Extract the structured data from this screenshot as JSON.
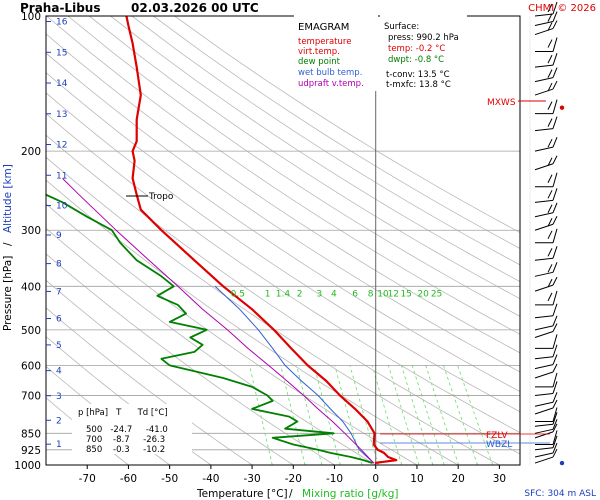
{
  "header": {
    "station": "Praha-Libus",
    "datetime": "02.03.2026 00 UTC",
    "copyright": "CHMI © 2026"
  },
  "legend": {
    "title": "EMAGRAM",
    "items": [
      {
        "label": "temperature",
        "color": "#e00000"
      },
      {
        "label": "virt.temp.",
        "color": "#e00000"
      },
      {
        "label": "dew point",
        "color": "#008000"
      },
      {
        "label": "wet bulb temp.",
        "color": "#3060d0"
      },
      {
        "label": "udpraft v.temp.",
        "color": "#b000b0"
      }
    ]
  },
  "surface_box": {
    "title": "Surface:",
    "lines": [
      {
        "text": "press: 990.2 hPa",
        "color": "#000000"
      },
      {
        "text": "temp: -0.2 °C",
        "color": "#e00000"
      },
      {
        "text": "dwpt: -0.8 °C",
        "color": "#008000"
      },
      {
        "text": "t-conv: 13.5 °C",
        "color": "#000000"
      },
      {
        "text": "t-mxfc: 13.8 °C",
        "color": "#000000"
      }
    ]
  },
  "levels_table": {
    "header": "p [hPa]   T      Td [°C]",
    "rows": [
      "500   -24.7     -41.0",
      "700    -8.7     -26.3",
      "850    -0.3     -10.2"
    ]
  },
  "axes": {
    "xlabel_temp": "Temperature [°C]",
    "xlabel_sep": "/",
    "xlabel_mix": "Mixing ratio [g/kg]",
    "ylabel_pressure": "Pressure [hPa]",
    "ylabel_sep": "/",
    "ylabel_alt": "Altitude [km]",
    "sfc_label": "SFC: 304 m ASL"
  },
  "annotations": {
    "tropo": "Tropo",
    "mxws": "MXWS",
    "fzlv": "FZLV",
    "wbzl": "WBZL"
  },
  "colors": {
    "temperature": "#e00000",
    "dewpoint": "#008000",
    "wetbulb": "#3060d0",
    "parcel": "#b000b0",
    "mixing": "#66dd66",
    "grid": "#b8b8b8",
    "altitude": "#1a3fbf"
  },
  "chart_data": {
    "type": "line",
    "title": "Praha-Libus   02.03.2026 00 UTC",
    "xlabel": "Temperature [°C]  /  Mixing ratio [g/kg]",
    "ylabel": "Pressure [hPa]  /  Altitude [km]",
    "x_range": [
      -80,
      35
    ],
    "y_range_hpa": [
      1000,
      100
    ],
    "y_scale": "log",
    "x_ticks": [
      -70,
      -60,
      -50,
      -40,
      -30,
      -20,
      -10,
      0,
      10,
      20,
      30
    ],
    "y_ticks": [
      100,
      200,
      300,
      400,
      500,
      600,
      700,
      850,
      925,
      1000
    ],
    "mixing_ratio_labels": [
      "0.5",
      "1",
      "1.4",
      "2",
      "3",
      "4",
      "6",
      "8",
      "10",
      "12",
      "15",
      "20",
      "25"
    ],
    "mixing_ratio_values": [
      0.5,
      1,
      1.4,
      2,
      3,
      4,
      6,
      8,
      10,
      12,
      15,
      20,
      25
    ],
    "altitude_km_ticks": [
      1,
      2,
      3,
      4,
      5,
      6,
      7,
      8,
      9,
      10,
      11,
      12,
      13,
      14,
      15,
      16
    ],
    "series": [
      {
        "name": "temperature",
        "points": [
          [
            990,
            -0.2
          ],
          [
            975,
            5
          ],
          [
            960,
            3
          ],
          [
            940,
            2
          ],
          [
            925,
            0.5
          ],
          [
            900,
            -0.5
          ],
          [
            850,
            -0.3
          ],
          [
            800,
            -2
          ],
          [
            750,
            -5
          ],
          [
            700,
            -8.7
          ],
          [
            650,
            -12
          ],
          [
            600,
            -16.5
          ],
          [
            550,
            -20.5
          ],
          [
            500,
            -24.7
          ],
          [
            450,
            -30
          ],
          [
            400,
            -37
          ],
          [
            350,
            -44
          ],
          [
            300,
            -52
          ],
          [
            270,
            -57
          ],
          [
            250,
            -58
          ],
          [
            230,
            -59
          ],
          [
            210,
            -58.5
          ],
          [
            200,
            -59
          ],
          [
            190,
            -58
          ],
          [
            170,
            -58
          ],
          [
            150,
            -57
          ],
          [
            130,
            -58
          ],
          [
            115,
            -59
          ],
          [
            105,
            -60
          ],
          [
            100,
            -60.5
          ]
        ]
      },
      {
        "name": "dew point",
        "points": [
          [
            990,
            -0.8
          ],
          [
            975,
            -3
          ],
          [
            960,
            -6
          ],
          [
            940,
            -11
          ],
          [
            925,
            -14
          ],
          [
            900,
            -20
          ],
          [
            870,
            -25
          ],
          [
            850,
            -10.2
          ],
          [
            830,
            -22
          ],
          [
            800,
            -19
          ],
          [
            780,
            -21
          ],
          [
            750,
            -30
          ],
          [
            720,
            -25
          ],
          [
            700,
            -26.3
          ],
          [
            670,
            -30
          ],
          [
            640,
            -37
          ],
          [
            600,
            -50
          ],
          [
            580,
            -52
          ],
          [
            560,
            -44
          ],
          [
            540,
            -42
          ],
          [
            520,
            -45
          ],
          [
            500,
            -41.0
          ],
          [
            480,
            -50
          ],
          [
            460,
            -46
          ],
          [
            440,
            -48
          ],
          [
            420,
            -53
          ],
          [
            400,
            -49
          ],
          [
            380,
            -52
          ],
          [
            350,
            -58
          ],
          [
            320,
            -62
          ],
          [
            300,
            -64
          ],
          [
            280,
            -70
          ],
          [
            260,
            -76
          ],
          [
            250,
            -80
          ]
        ]
      },
      {
        "name": "wet bulb temp.",
        "points": [
          [
            990,
            -0.5
          ],
          [
            925,
            -4
          ],
          [
            850,
            -6
          ],
          [
            800,
            -8
          ],
          [
            750,
            -11
          ],
          [
            700,
            -14
          ],
          [
            650,
            -18
          ],
          [
            600,
            -22
          ],
          [
            550,
            -25
          ],
          [
            500,
            -28.5
          ],
          [
            450,
            -33
          ],
          [
            400,
            -39
          ]
        ]
      },
      {
        "name": "udpraft v.temp.",
        "points": [
          [
            990,
            -0.5
          ],
          [
            925,
            -3.5
          ],
          [
            850,
            -7.5
          ],
          [
            800,
            -10.5
          ],
          [
            750,
            -14
          ],
          [
            700,
            -17.5
          ],
          [
            650,
            -21.5
          ],
          [
            600,
            -26
          ],
          [
            550,
            -31
          ],
          [
            500,
            -36
          ],
          [
            450,
            -42
          ],
          [
            400,
            -48
          ],
          [
            350,
            -55
          ],
          [
            300,
            -63
          ],
          [
            250,
            -72
          ],
          [
            230,
            -76
          ]
        ]
      }
    ],
    "barbs_hpa": [
      990,
      960,
      925,
      900,
      870,
      850,
      820,
      800,
      770,
      740,
      700,
      670,
      640,
      610,
      580,
      550,
      520,
      500,
      470,
      440,
      410,
      380,
      350,
      320,
      300,
      280,
      260,
      240,
      220,
      200,
      180,
      165,
      150,
      140,
      130,
      120,
      110,
      105,
      100
    ],
    "legend_position": "top-right"
  }
}
